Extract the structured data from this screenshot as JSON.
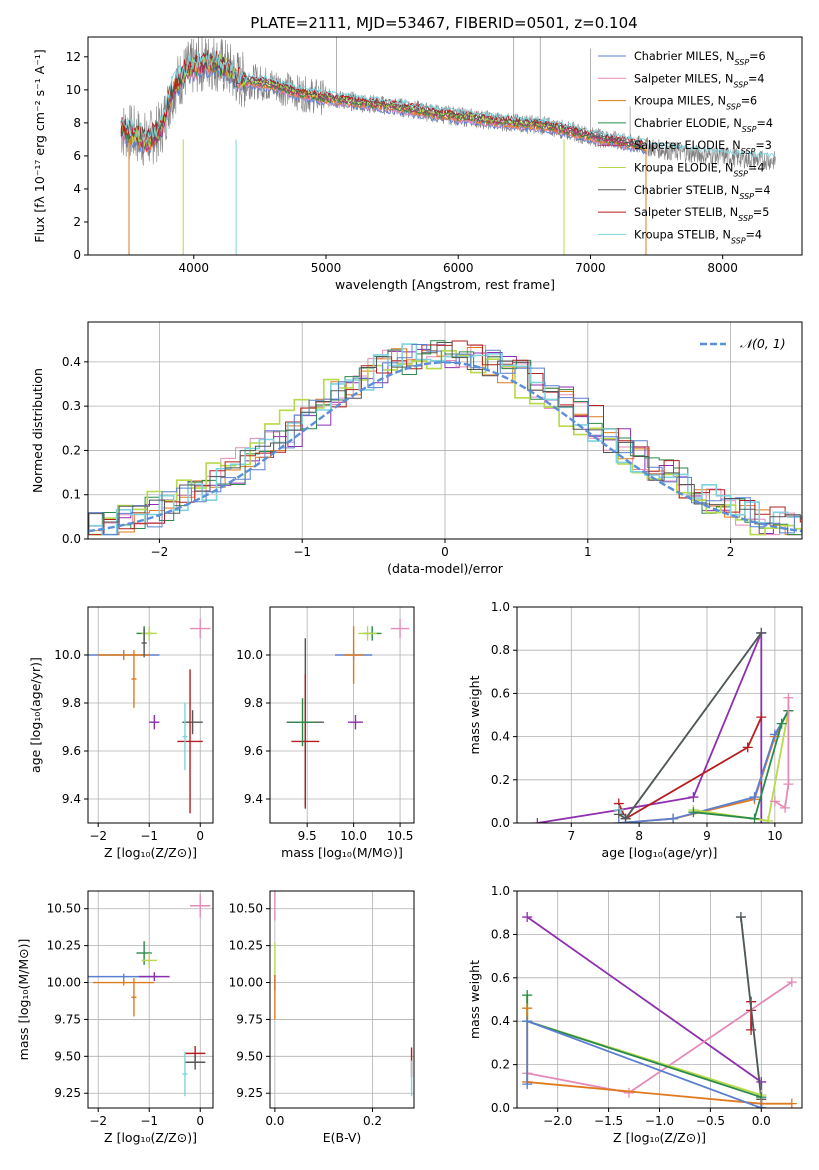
{
  "figure": {
    "title": "PLATE=2111, MJD=53467, FIBERID=0501, z=0.104"
  },
  "series_colors": {
    "Chabrier MILES": "#5b7fd0",
    "Salpeter MILES": "#e58ab8",
    "Kroupa MILES": "#e07a1f",
    "Chabrier ELODIE": "#2a8a4a",
    "Salpeter ELODIE": "#b0306a",
    "Kroupa ELODIE": "#b7d94a",
    "Chabrier STELIB": "#555555",
    "Salpeter STELIB": "#b51f1f",
    "Kroupa STELIB": "#7fd3df",
    "Purple": "#8e2fb0",
    "data": "#808080",
    "normal_curve": "#5b8fd8"
  },
  "chart_data": [
    {
      "id": "spectrum",
      "type": "line",
      "title": "PLATE=2111, MJD=53467, FIBERID=0501, z=0.104",
      "xlabel": "wavelength [Angstrom, rest frame]",
      "ylabel": "Flux [fλ 10⁻¹⁷ erg cm⁻² s⁻¹ A⁻¹]",
      "xlim": [
        3200,
        8600
      ],
      "ylim": [
        0,
        13.2
      ],
      "xticks": [
        "4000",
        "5000",
        "6000",
        "7000",
        "8000"
      ],
      "xtick_values": [
        4000,
        5000,
        6000,
        7000,
        8000
      ],
      "yticks": [
        "0",
        "2",
        "4",
        "6",
        "8",
        "10",
        "12"
      ],
      "ytick_values": [
        0,
        2,
        4,
        6,
        8,
        10,
        12
      ],
      "legend_position": "top-right",
      "legend": [
        {
          "label": "Chabrier MILES, N",
          "sub": "SSP",
          "suffix": "=6",
          "color": "#5b7fd0"
        },
        {
          "label": "Salpeter MILES, N",
          "sub": "SSP",
          "suffix": "=4",
          "color": "#e58ab8"
        },
        {
          "label": "Kroupa MILES, N",
          "sub": "SSP",
          "suffix": "=6",
          "color": "#e07a1f"
        },
        {
          "label": "Chabrier ELODIE, N",
          "sub": "SSP",
          "suffix": "=4",
          "color": "#2a8a4a"
        },
        {
          "label": "Salpeter ELODIE, N",
          "sub": "SSP",
          "suffix": "=3",
          "color": "#b0306a"
        },
        {
          "label": "Kroupa ELODIE, N",
          "sub": "SSP",
          "suffix": "=4",
          "color": "#b7d94a"
        },
        {
          "label": "Chabrier STELIB, N",
          "sub": "SSP",
          "suffix": "=4",
          "color": "#555555"
        },
        {
          "label": "Salpeter STELIB, N",
          "sub": "SSP",
          "suffix": "=5",
          "color": "#b51f1f"
        },
        {
          "label": "Kroupa STELIB, N",
          "sub": "SSP",
          "suffix": "=4",
          "color": "#7fd3df"
        }
      ],
      "continuum": {
        "x": [
          3450,
          3550,
          3650,
          3750,
          3850,
          3950,
          4050,
          4150,
          4250,
          4350,
          4450,
          4600,
          4800,
          5000,
          5200,
          5400,
          5600,
          5800,
          6000,
          6200,
          6400,
          6600,
          6800,
          7000,
          7200,
          7400,
          7600,
          7800,
          8000,
          8200,
          8400
        ],
        "y": [
          7.6,
          7.3,
          6.9,
          7.6,
          10.2,
          11.2,
          11.6,
          11.7,
          11.3,
          10.6,
          10.5,
          10.3,
          9.8,
          9.5,
          9.3,
          9.1,
          8.9,
          8.6,
          8.4,
          8.2,
          8.0,
          7.9,
          7.6,
          7.2,
          6.9,
          6.6,
          6.3,
          6.1,
          6.0,
          5.8,
          5.7
        ]
      }
    },
    {
      "id": "residuals",
      "type": "line",
      "xlabel": "(data-model)/error",
      "ylabel": "Normed distribution",
      "xlim": [
        -2.5,
        2.5
      ],
      "ylim": [
        0,
        0.49
      ],
      "xticks": [
        "−2",
        "−1",
        "0",
        "1",
        "2"
      ],
      "xtick_values": [
        -2,
        -1,
        0,
        1,
        2
      ],
      "yticks": [
        "0.0",
        "0.1",
        "0.2",
        "0.3",
        "0.4"
      ],
      "ytick_values": [
        0,
        0.1,
        0.2,
        0.3,
        0.4
      ],
      "legend_position": "top-right",
      "legend_label": "𝒩(0, 1)",
      "grid": true
    },
    {
      "id": "age_vs_Z",
      "type": "scatter",
      "xlabel": "Z [log₁₀(Z/Z⊙)]",
      "ylabel": "age  [log₁₀(age/yr)]",
      "xlim": [
        -2.2,
        0.25
      ],
      "ylim": [
        9.3,
        10.2
      ],
      "xticks": [
        "−2",
        "−1",
        "0"
      ],
      "xtick_values": [
        -2,
        -1,
        0
      ],
      "yticks": [
        "9.4",
        "9.6",
        "9.8",
        "10.0"
      ],
      "ytick_values": [
        9.4,
        9.6,
        9.8,
        10.0
      ],
      "grid": true,
      "points": [
        {
          "x": -1.5,
          "y": 10.0,
          "xerr": 0.7,
          "yerr": 0.02,
          "color": "#5b7fd0"
        },
        {
          "x": -1.5,
          "y": 10.0,
          "xerr": 0.5,
          "yerr": 0.02,
          "color": "#e07a1f"
        },
        {
          "x": -1.3,
          "y": 9.9,
          "xerr": 0.05,
          "yerr": 0.12,
          "color": "#e07a1f"
        },
        {
          "x": -1.1,
          "y": 10.09,
          "xerr": 0.15,
          "yerr": 0.03,
          "color": "#2a8a4a"
        },
        {
          "x": -1.0,
          "y": 10.09,
          "xerr": 0.15,
          "yerr": 0.03,
          "color": "#b7d94a"
        },
        {
          "x": -1.1,
          "y": 10.05,
          "xerr": 0.05,
          "yerr": 0.06,
          "color": "#555555"
        },
        {
          "x": -0.9,
          "y": 9.72,
          "xerr": 0.1,
          "yerr": 0.03,
          "color": "#8e2fb0"
        },
        {
          "x": 0.0,
          "y": 10.11,
          "xerr": 0.2,
          "yerr": 0.04,
          "color": "#e58ab8"
        },
        {
          "x": -0.15,
          "y": 9.72,
          "xerr": 0.2,
          "yerr": 0.05,
          "color": "#555555"
        },
        {
          "x": -0.2,
          "y": 9.64,
          "xerr": 0.25,
          "yerr": 0.3,
          "color": "#b51f1f"
        },
        {
          "x": -0.3,
          "y": 9.66,
          "xerr": 0.05,
          "yerr": 0.14,
          "color": "#7fd3df"
        }
      ]
    },
    {
      "id": "age_vs_mass",
      "type": "scatter",
      "xlabel": "mass [log₁₀(M/M⊙)]",
      "ylabel": "",
      "xlim": [
        9.1,
        10.65
      ],
      "ylim": [
        9.3,
        10.2
      ],
      "xticks": [
        "9.5",
        "10.0",
        "10.5"
      ],
      "xtick_values": [
        9.5,
        10.0,
        10.5
      ],
      "yticks": [
        "9.4",
        "9.6",
        "9.8",
        "10.0"
      ],
      "ytick_values": [
        9.4,
        9.6,
        9.8,
        10.0
      ],
      "grid": true,
      "points": [
        {
          "x": 10.0,
          "y": 10.0,
          "xerr": 0.2,
          "yerr": 0.02,
          "color": "#5b7fd0"
        },
        {
          "x": 10.0,
          "y": 10.0,
          "xerr": 0.1,
          "yerr": 0.12,
          "color": "#e07a1f"
        },
        {
          "x": 10.2,
          "y": 10.09,
          "xerr": 0.1,
          "yerr": 0.03,
          "color": "#2a8a4a"
        },
        {
          "x": 10.15,
          "y": 10.09,
          "xerr": 0.1,
          "yerr": 0.03,
          "color": "#b7d94a"
        },
        {
          "x": 10.5,
          "y": 10.11,
          "xerr": 0.1,
          "yerr": 0.04,
          "color": "#e58ab8"
        },
        {
          "x": 10.02,
          "y": 9.72,
          "xerr": 0.08,
          "yerr": 0.03,
          "color": "#8e2fb0"
        },
        {
          "x": 9.48,
          "y": 9.72,
          "xerr": 0.2,
          "yerr": 0.35,
          "color": "#555555"
        },
        {
          "x": 9.48,
          "y": 9.64,
          "xerr": 0.15,
          "yerr": 0.28,
          "color": "#b51f1f"
        },
        {
          "x": 9.45,
          "y": 9.72,
          "xerr": 0.15,
          "yerr": 0.1,
          "color": "#2a8a4a"
        }
      ]
    },
    {
      "id": "massweight_vs_age",
      "type": "line",
      "xlabel": "age  [log₁₀(age/yr)]",
      "ylabel": "mass weight",
      "xlim": [
        6.2,
        10.4
      ],
      "ylim": [
        0,
        1.0
      ],
      "xticks": [
        "7",
        "8",
        "9",
        "10"
      ],
      "xtick_values": [
        7,
        8,
        9,
        10
      ],
      "yticks": [
        "0.0",
        "0.2",
        "0.4",
        "0.6",
        "0.8",
        "1.0"
      ],
      "ytick_values": [
        0,
        0.2,
        0.4,
        0.6,
        0.8,
        1.0
      ],
      "grid": true,
      "series": [
        {
          "color": "#8e2fb0",
          "x": [
            6.5,
            7.7,
            8.8,
            9.8,
            9.8
          ],
          "y": [
            0.0,
            0.06,
            0.12,
            0.88,
            0.0
          ]
        },
        {
          "color": "#b51f1f",
          "x": [
            7.7,
            7.8,
            9.6,
            9.8
          ],
          "y": [
            0.09,
            0.02,
            0.35,
            0.49
          ]
        },
        {
          "color": "#7fd3df",
          "x": [
            7.7,
            7.8,
            9.8
          ],
          "y": [
            0.06,
            0.02,
            0.88
          ]
        },
        {
          "color": "#555555",
          "x": [
            7.7,
            7.8,
            9.8
          ],
          "y": [
            0.04,
            0.02,
            0.88
          ]
        },
        {
          "color": "#e07a1f",
          "x": [
            7.7,
            8.5,
            9.7,
            10.0,
            10.2
          ],
          "y": [
            0.0,
            0.02,
            0.11,
            0.4,
            0.52
          ]
        },
        {
          "color": "#5b7fd0",
          "x": [
            7.7,
            8.5,
            9.7,
            10.0,
            10.2
          ],
          "y": [
            0.0,
            0.02,
            0.12,
            0.41,
            0.52
          ]
        },
        {
          "color": "#b7d94a",
          "x": [
            8.8,
            9.9,
            10.2
          ],
          "y": [
            0.06,
            0.01,
            0.52
          ]
        },
        {
          "color": "#2a8a4a",
          "x": [
            8.8,
            9.7,
            10.1,
            10.2
          ],
          "y": [
            0.05,
            0.02,
            0.46,
            0.52
          ]
        },
        {
          "color": "#e58ab8",
          "x": [
            10.0,
            10.15,
            10.2,
            10.2
          ],
          "y": [
            0.1,
            0.07,
            0.18,
            0.58
          ]
        }
      ]
    },
    {
      "id": "mass_vs_Z",
      "type": "scatter",
      "xlabel": "Z [log₁₀(Z/Z⊙)]",
      "ylabel": "mass [log₁₀(M/M⊙)]",
      "xlim": [
        -2.2,
        0.25
      ],
      "ylim": [
        9.15,
        10.62
      ],
      "xticks": [
        "−2",
        "−1",
        "0"
      ],
      "xtick_values": [
        -2,
        -1,
        0
      ],
      "yticks": [
        "9.25",
        "9.50",
        "9.75",
        "10.00",
        "10.25",
        "10.50"
      ],
      "ytick_values": [
        9.25,
        9.5,
        9.75,
        10.0,
        10.25,
        10.5
      ],
      "grid": true,
      "points": [
        {
          "x": -1.5,
          "y": 10.04,
          "xerr": 0.7,
          "yerr": 0.02,
          "color": "#5b7fd0"
        },
        {
          "x": -1.5,
          "y": 10.0,
          "xerr": 0.6,
          "yerr": 0.02,
          "color": "#e07a1f"
        },
        {
          "x": -1.3,
          "y": 9.9,
          "xerr": 0.05,
          "yerr": 0.13,
          "color": "#e07a1f"
        },
        {
          "x": -1.1,
          "y": 10.2,
          "xerr": 0.15,
          "yerr": 0.08,
          "color": "#2a8a4a"
        },
        {
          "x": -1.0,
          "y": 10.15,
          "xerr": 0.15,
          "yerr": 0.05,
          "color": "#b7d94a"
        },
        {
          "x": -0.9,
          "y": 10.04,
          "xerr": 0.3,
          "yerr": 0.03,
          "color": "#8e2fb0"
        },
        {
          "x": 0.0,
          "y": 10.52,
          "xerr": 0.2,
          "yerr": 0.08,
          "color": "#e58ab8"
        },
        {
          "x": -0.1,
          "y": 9.52,
          "xerr": 0.2,
          "yerr": 0.05,
          "color": "#b51f1f"
        },
        {
          "x": -0.1,
          "y": 9.46,
          "xerr": 0.2,
          "yerr": 0.05,
          "color": "#555555"
        },
        {
          "x": -0.3,
          "y": 9.38,
          "xerr": 0.05,
          "yerr": 0.15,
          "color": "#7fd3df"
        }
      ]
    },
    {
      "id": "mass_vs_ebv",
      "type": "scatter",
      "xlabel": "E(B-V)",
      "ylabel": "",
      "xlim": [
        -0.01,
        0.285
      ],
      "ylim": [
        9.15,
        10.62
      ],
      "xticks": [
        "0.0",
        "0.2"
      ],
      "xtick_values": [
        0.0,
        0.2
      ],
      "yticks": [
        "9.25",
        "9.50",
        "9.75",
        "10.00",
        "10.25",
        "10.50"
      ],
      "ytick_values": [
        9.25,
        9.5,
        9.75,
        10.0,
        10.25,
        10.5
      ],
      "grid": true,
      "points": [
        {
          "x": 0.0,
          "y": 10.52,
          "xerr": 0.0,
          "yerr": 0.1,
          "color": "#e58ab8"
        },
        {
          "x": 0.0,
          "y": 10.15,
          "xerr": 0.0,
          "yerr": 0.12,
          "color": "#b7d94a"
        },
        {
          "x": 0.0,
          "y": 10.0,
          "xerr": 0.0,
          "yerr": 0.05,
          "color": "#8e2fb0"
        },
        {
          "x": 0.0,
          "y": 9.9,
          "xerr": 0.0,
          "yerr": 0.15,
          "color": "#e07a1f"
        },
        {
          "x": 0.28,
          "y": 9.46,
          "xerr": 0.0,
          "yerr": 0.1,
          "color": "#b51f1f"
        },
        {
          "x": 0.28,
          "y": 9.35,
          "xerr": 0.0,
          "yerr": 0.12,
          "color": "#7fd3df"
        }
      ]
    },
    {
      "id": "massweight_vs_Z",
      "type": "line",
      "xlabel": "Z [log₁₀(Z/Z⊙)]",
      "ylabel": "mass weight",
      "xlim": [
        -2.4,
        0.4
      ],
      "ylim": [
        0,
        1.0
      ],
      "xticks": [
        "−2.0",
        "−1.5",
        "−1.0",
        "−0.5",
        "0.0"
      ],
      "xtick_values": [
        -2.0,
        -1.5,
        -1.0,
        -0.5,
        0.0
      ],
      "yticks": [
        "0.0",
        "0.2",
        "0.4",
        "0.6",
        "0.8",
        "1.0"
      ],
      "ytick_values": [
        0,
        0.2,
        0.4,
        0.6,
        0.8,
        1.0
      ],
      "grid": true,
      "series": [
        {
          "color": "#8e2fb0",
          "x": [
            -2.3,
            0.0,
            0.0
          ],
          "y": [
            0.88,
            0.12,
            0.0
          ]
        },
        {
          "color": "#e58ab8",
          "x": [
            -2.3,
            -1.3,
            0.3
          ],
          "y": [
            0.16,
            0.07,
            0.58
          ]
        },
        {
          "color": "#b51f1f",
          "x": [
            -0.1,
            -0.1,
            -0.1
          ],
          "y": [
            0.49,
            0.36,
            0.45
          ]
        },
        {
          "color": "#7fd3df",
          "x": [
            -0.2,
            0.0,
            0.0
          ],
          "y": [
            0.88,
            0.05,
            0.0
          ]
        },
        {
          "color": "#555555",
          "x": [
            -0.2,
            0.0,
            0.0
          ],
          "y": [
            0.88,
            0.04,
            0.0
          ]
        },
        {
          "color": "#b7d94a",
          "x": [
            -2.3,
            -2.3,
            0.0
          ],
          "y": [
            0.52,
            0.4,
            0.06
          ]
        },
        {
          "color": "#2a8a4a",
          "x": [
            -2.3,
            -2.3,
            0.0
          ],
          "y": [
            0.52,
            0.4,
            0.05
          ]
        },
        {
          "color": "#e07a1f",
          "x": [
            -2.3,
            -2.3,
            0.0,
            0.3
          ],
          "y": [
            0.46,
            0.12,
            0.02,
            0.02
          ]
        },
        {
          "color": "#5b7fd0",
          "x": [
            -2.3,
            -2.3,
            0.0
          ],
          "y": [
            0.11,
            0.4,
            0.0
          ]
        }
      ]
    }
  ]
}
